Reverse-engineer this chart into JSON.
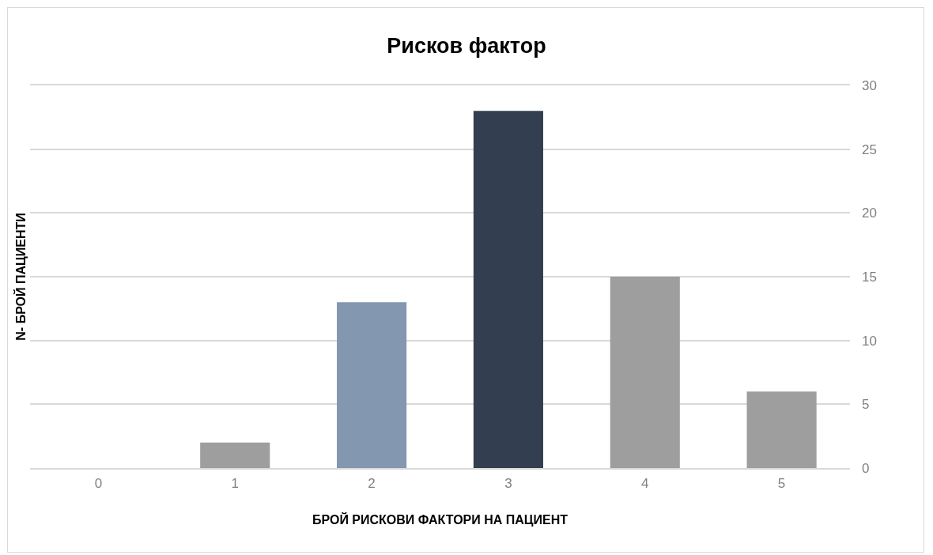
{
  "chart_data": {
    "type": "bar",
    "title": "Рисков фактор",
    "xlabel": "БРОЙ РИСКОВИ ФАКТОРИ НА ПАЦИЕНТ",
    "ylabel": "N- БРОЙ ПАЦИЕНТИ",
    "categories": [
      "0",
      "1",
      "2",
      "3",
      "4",
      "5"
    ],
    "values": [
      0,
      2,
      13,
      28,
      15,
      6
    ],
    "colors": [
      "#9e9e9e",
      "#9e9e9e",
      "#8497b0",
      "#333f50",
      "#9e9e9e",
      "#9e9e9e"
    ],
    "ylim": [
      0,
      30
    ],
    "yticks": [
      0,
      5,
      10,
      15,
      20,
      25,
      30
    ],
    "grid": "y"
  }
}
